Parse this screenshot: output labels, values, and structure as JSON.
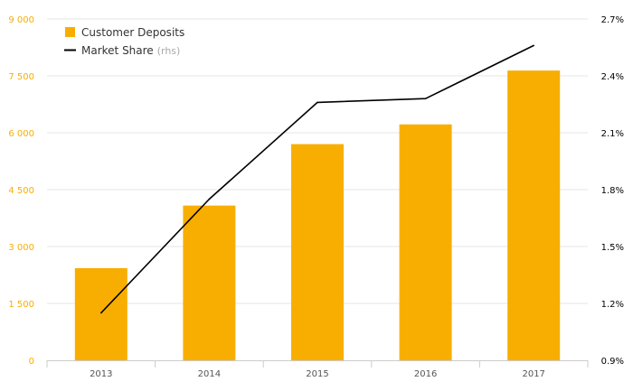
{
  "chart_data": {
    "type": "bar",
    "title": "",
    "xlabel": "",
    "ylabel": "",
    "categories": [
      "2013",
      "2014",
      "2015",
      "2016",
      "2017"
    ],
    "series": [
      {
        "name": "Customer Deposits",
        "type": "bar",
        "axis": "left",
        "values": [
          2430,
          4080,
          5700,
          6220,
          7640
        ],
        "color": "#f8ae00"
      },
      {
        "name": "Market Share",
        "type": "line",
        "axis": "right",
        "values": [
          1.15,
          1.75,
          2.26,
          2.28,
          2.56
        ],
        "color": "#000000"
      }
    ],
    "y_left": {
      "ticks": [
        0,
        1500,
        3000,
        4500,
        6000,
        7500,
        9000
      ],
      "tick_labels": [
        "0",
        "1 500",
        "3 000",
        "4 500",
        "6 000",
        "7 500",
        "9 000"
      ],
      "ylim": [
        0,
        9000
      ],
      "label_color": "#f8ae00"
    },
    "y_right": {
      "ticks": [
        0.9,
        1.2,
        1.5,
        1.8,
        2.1,
        2.4,
        2.7
      ],
      "tick_labels": [
        "0.9%",
        "1.2%",
        "1.5%",
        "1.8%",
        "2.1%",
        "2.4%",
        "2.7%"
      ],
      "ylim": [
        0.9,
        2.7
      ],
      "label_color": "#000000"
    },
    "legend": {
      "placement": "top-left",
      "items": [
        {
          "label": "Customer Deposits",
          "marker": "square",
          "color": "#f8ae00"
        },
        {
          "label": "Market Share",
          "suffix": "(rhs)",
          "marker": "line",
          "color": "#000000"
        }
      ]
    },
    "grid": true,
    "colors": {
      "bar": "#f8ae00",
      "line": "#000000",
      "grid": "#e6e6e6",
      "axis": "#cccccc",
      "muted": "#aaaaaa"
    }
  }
}
